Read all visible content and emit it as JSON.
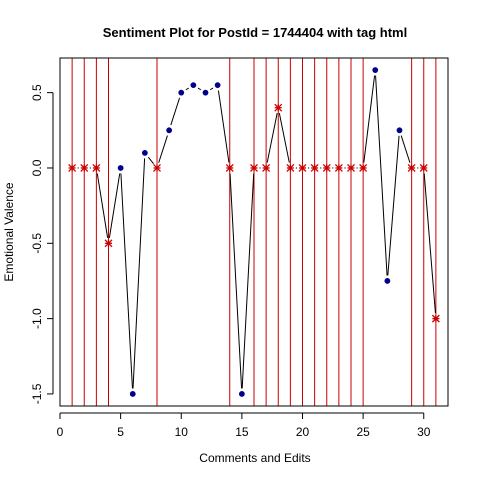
{
  "chart_data": {
    "type": "line",
    "title": "Sentiment Plot for PostId =  1744404  with tag  html",
    "xlabel": "Comments and Edits",
    "ylabel": "Emotional Valence",
    "xlim": [
      0,
      32
    ],
    "ylim": [
      -1.58,
      0.73
    ],
    "x_ticks": [
      0,
      5,
      10,
      15,
      20,
      25,
      30
    ],
    "y_ticks": [
      -1.5,
      -1.0,
      -0.5,
      0.0,
      0.5
    ],
    "x_tick_labels": [
      "0",
      "5",
      "10",
      "15",
      "20",
      "25",
      "30"
    ],
    "y_tick_labels": [
      "-1.5",
      "-1.0",
      "-0.5",
      "0.0",
      "0.5"
    ],
    "series": [
      {
        "x": [
          1,
          2,
          3,
          4,
          5,
          6,
          7,
          8,
          9,
          10,
          11,
          12,
          13,
          14,
          15,
          16,
          17,
          18,
          19,
          20,
          21,
          22,
          23,
          24,
          25,
          26,
          27,
          28,
          29,
          30,
          31
        ],
        "values": [
          0,
          0,
          0,
          -0.5,
          0,
          -1.5,
          0.1,
          0,
          0.25,
          0.5,
          0.55,
          0.5,
          0.55,
          0,
          -1.5,
          0,
          0,
          0.4,
          0,
          0,
          0,
          0,
          0,
          0,
          0,
          0.65,
          -0.75,
          0.25,
          0,
          0,
          -1
        ]
      }
    ],
    "edit_positions": [
      1,
      2,
      3,
      4,
      8,
      14,
      16,
      17,
      18,
      19,
      20,
      21,
      22,
      23,
      24,
      25,
      29,
      30,
      31
    ],
    "colors": {
      "line": "#000000",
      "comment_point": "#00008B",
      "edit_marker": "#CC0000",
      "edit_line": "#CC0000"
    },
    "grid": false,
    "legend": "none"
  }
}
